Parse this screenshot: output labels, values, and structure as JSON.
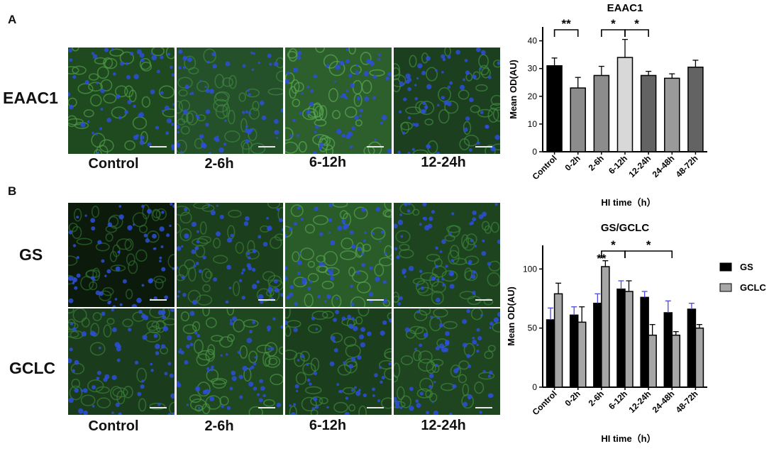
{
  "panels": {
    "a": {
      "letter": "A",
      "row_labels": [
        "EAAC1"
      ],
      "col_labels": [
        "Control",
        "2-6h",
        "6-12h",
        "12-24h"
      ]
    },
    "b": {
      "letter": "B",
      "row_labels": [
        "GS",
        "GCLC"
      ],
      "col_labels": [
        "Control",
        "2-6h",
        "6-12h",
        "12-24h"
      ]
    }
  },
  "colors": {
    "image_green": "#3c8a3a",
    "nuclei_blue": "#2b4fd8",
    "eaac1_bars": [
      "#000000",
      "#8c8c8c",
      "#8c8c8c",
      "#d8d8d8",
      "#636363",
      "#9a9a9a",
      "#636363"
    ],
    "gs": "#000000",
    "gclc": "#a6a6a6",
    "gs_error": "#4a4ad6"
  },
  "chart_data": [
    {
      "type": "bar",
      "title": "EAAC1",
      "xlabel": "HI time（h）",
      "ylabel": "Mean OD(AU)",
      "ylim": [
        0,
        45
      ],
      "yticks": [
        0,
        10,
        20,
        30,
        40
      ],
      "categories": [
        "Control",
        "0-2h",
        "2-6h",
        "6-12h",
        "12-24h",
        "24-48h",
        "48-72h"
      ],
      "series": [
        {
          "values": [
            31,
            23,
            27.5,
            34,
            27.5,
            26.5,
            30.5
          ],
          "errors": [
            2.8,
            3.8,
            3.3,
            6.5,
            1.5,
            1.6,
            2.5
          ]
        }
      ],
      "significance": [
        {
          "from": 0,
          "to": 1,
          "label": "**"
        },
        {
          "from": 2,
          "to": 3,
          "label": "*"
        },
        {
          "from": 3,
          "to": 4,
          "label": "*"
        }
      ],
      "legend": "none"
    },
    {
      "type": "bar",
      "title": "GS/GCLC",
      "xlabel": "HI time（h）",
      "ylabel": "Mean OD(AU)",
      "ylim": [
        0,
        120
      ],
      "yticks": [
        0,
        50,
        100
      ],
      "categories": [
        "Control",
        "0-2h",
        "2-6h",
        "6-12h",
        "12-24h",
        "24-48h",
        "48-72h"
      ],
      "series": [
        {
          "name": "GS",
          "values": [
            57,
            61,
            71,
            83,
            76,
            63,
            66
          ],
          "errors": [
            10,
            7,
            8,
            7,
            5,
            10,
            5
          ]
        },
        {
          "name": "GCLC",
          "values": [
            79,
            55,
            102,
            81,
            44,
            44,
            50
          ],
          "errors": [
            9,
            13,
            5,
            9,
            9,
            3,
            3
          ]
        }
      ],
      "significance": [
        {
          "from": 2,
          "to": 3,
          "label": "*"
        },
        {
          "from": 3,
          "to": 5,
          "label": "*"
        },
        {
          "from": 2,
          "to": 2,
          "label": "**"
        }
      ],
      "legend": "right"
    }
  ]
}
